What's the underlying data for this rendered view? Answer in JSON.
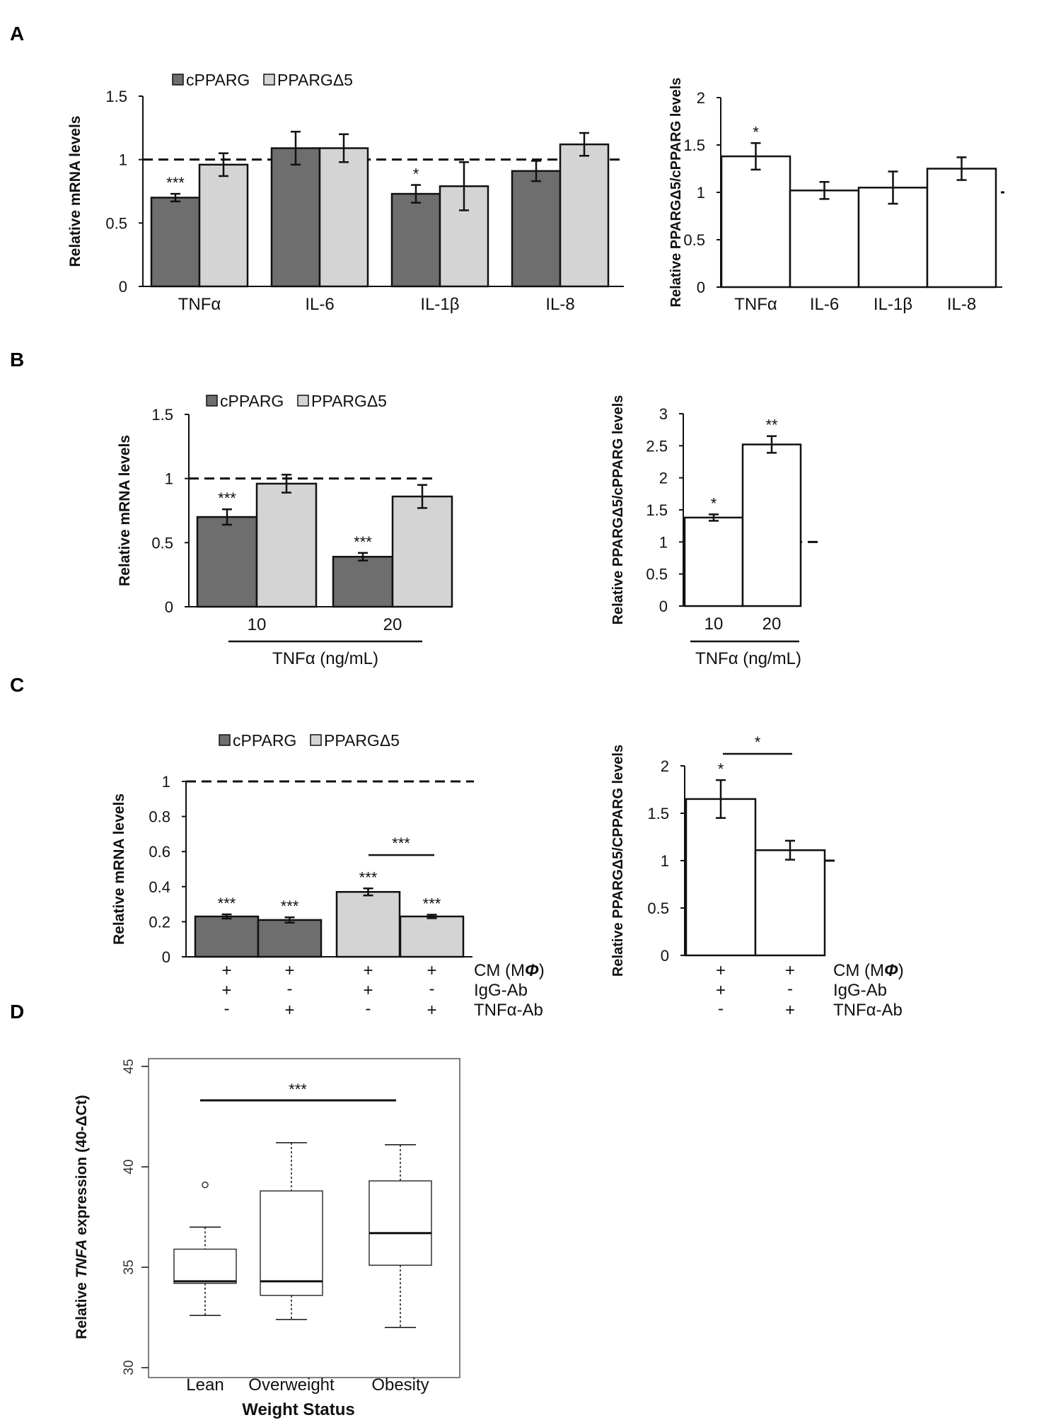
{
  "figure": {
    "panels": {
      "A": "A",
      "B": "B",
      "C": "C",
      "D": "D"
    }
  },
  "colors": {
    "cpparg": "#6e6e6e",
    "delta5": "#d4d4d4",
    "ratio": "#ffffff",
    "stroke": "#111111"
  },
  "chart_data": [
    {
      "id": "A_mrna",
      "type": "bar",
      "panel": "A",
      "ylabel": "Relative mRNA levels",
      "ylim": [
        0,
        1.5
      ],
      "yticks": [
        "0",
        "0.5",
        "1",
        "1.5"
      ],
      "reference_line": 1,
      "categories": [
        "TNFα",
        "IL-6",
        "IL-1β",
        "IL-8"
      ],
      "legend": [
        "cPPARG",
        "PPARGΔ5"
      ],
      "series": [
        {
          "name": "cPPARG",
          "values": [
            0.7,
            1.09,
            0.73,
            0.91
          ],
          "errors": [
            0.03,
            0.13,
            0.07,
            0.08
          ],
          "sig": [
            "***",
            "",
            "*",
            ""
          ]
        },
        {
          "name": "PPARGΔ5",
          "values": [
            0.96,
            1.09,
            0.79,
            1.12
          ],
          "errors": [
            0.09,
            0.11,
            0.19,
            0.09
          ],
          "sig": [
            "",
            "",
            "",
            ""
          ]
        }
      ]
    },
    {
      "id": "A_ratio",
      "type": "bar",
      "panel": "A",
      "ylabel": "Relative PPARGΔ5/cPPARG levels",
      "ylim": [
        0,
        2
      ],
      "yticks": [
        "0",
        "0.5",
        "1",
        "1.5",
        "2"
      ],
      "reference_line": 1,
      "categories": [
        "TNFα",
        "IL-6",
        "IL-1β",
        "IL-8"
      ],
      "series": [
        {
          "name": "ratio",
          "values": [
            1.38,
            1.02,
            1.05,
            1.25
          ],
          "errors": [
            0.14,
            0.09,
            0.17,
            0.12
          ],
          "sig": [
            "*",
            "",
            "",
            ""
          ]
        }
      ]
    },
    {
      "id": "B_mrna",
      "type": "bar",
      "panel": "B",
      "ylabel": "Relative mRNA levels",
      "ylim": [
        0,
        1.5
      ],
      "yticks": [
        "0",
        "0.5",
        "1",
        "1.5"
      ],
      "reference_line": 1,
      "categories": [
        "10",
        "20"
      ],
      "xlabel": "TNFα (ng/mL)",
      "legend": [
        "cPPARG",
        "PPARGΔ5"
      ],
      "series": [
        {
          "name": "cPPARG",
          "values": [
            0.7,
            0.39
          ],
          "errors": [
            0.06,
            0.03
          ],
          "sig": [
            "***",
            "***"
          ]
        },
        {
          "name": "PPARGΔ5",
          "values": [
            0.96,
            0.86
          ],
          "errors": [
            0.07,
            0.09
          ],
          "sig": [
            "",
            ""
          ]
        }
      ]
    },
    {
      "id": "B_ratio",
      "type": "bar",
      "panel": "B",
      "ylabel": "Relative PPARGΔ5/cPPARG levels",
      "ylim": [
        0,
        3
      ],
      "yticks": [
        "0",
        "0.5",
        "1",
        "1.5",
        "2",
        "2.5",
        "3"
      ],
      "reference_line": 1,
      "categories": [
        "10",
        "20"
      ],
      "xlabel": "TNFα (ng/mL)",
      "series": [
        {
          "name": "ratio",
          "values": [
            1.38,
            2.52
          ],
          "errors": [
            0.05,
            0.13
          ],
          "sig": [
            "*",
            "**"
          ]
        }
      ]
    },
    {
      "id": "C_mrna",
      "type": "bar",
      "panel": "C",
      "ylabel": "Relative mRNA levels",
      "ylim": [
        0,
        1
      ],
      "yticks": [
        "0",
        "0.2",
        "0.4",
        "0.6",
        "0.8",
        "1"
      ],
      "reference_line": 1,
      "legend": [
        "cPPARG",
        "PPARGΔ5"
      ],
      "bars": [
        {
          "series": "cPPARG",
          "value": 0.23,
          "error": 0.012,
          "sig": "***"
        },
        {
          "series": "cPPARG",
          "value": 0.21,
          "error": 0.015,
          "sig": "***"
        },
        {
          "series": "PPARGΔ5",
          "value": 0.37,
          "error": 0.02,
          "sig": "***"
        },
        {
          "series": "PPARGΔ5",
          "value": 0.23,
          "error": 0.01,
          "sig": "***"
        }
      ],
      "bracket": {
        "from": 2,
        "to": 3,
        "label": "***",
        "y": 0.58
      },
      "conditions": [
        {
          "label": "CM (MΦ)",
          "marks": [
            "+",
            "+",
            "+",
            "+"
          ]
        },
        {
          "label": "IgG-Ab",
          "marks": [
            "+",
            "-",
            "+",
            "-"
          ]
        },
        {
          "label": "TNFα-Ab",
          "marks": [
            "-",
            "+",
            "-",
            "+"
          ]
        }
      ]
    },
    {
      "id": "C_ratio",
      "type": "bar",
      "panel": "C",
      "ylabel": "Relative PPARGΔ5/CPPARG levels",
      "ylim": [
        0,
        2
      ],
      "yticks": [
        "0",
        "0.5",
        "1",
        "1.5",
        "2"
      ],
      "reference_line": 1,
      "bars": [
        {
          "series": "ratio",
          "value": 1.65,
          "error": 0.2,
          "sig": "*"
        },
        {
          "series": "ratio",
          "value": 1.11,
          "error": 0.1,
          "sig": ""
        }
      ],
      "bracket": {
        "from": 0,
        "to": 1,
        "label": "*",
        "y": 2.0
      },
      "conditions": [
        {
          "label": "CM (MΦ)",
          "marks": [
            "+",
            "+"
          ]
        },
        {
          "label": "IgG-Ab",
          "marks": [
            "+",
            "-"
          ]
        },
        {
          "label": "TNFα-Ab",
          "marks": [
            "-",
            "+"
          ]
        }
      ]
    },
    {
      "id": "D_box",
      "type": "box",
      "panel": "D",
      "ylabel_pre": "Relative ",
      "ylabel_gene": "TNFA",
      "ylabel_post": " expression (40-ΔCt)",
      "xlabel": "Weight Status",
      "ylim": [
        30,
        45
      ],
      "yticks": [
        "30",
        "35",
        "40",
        "45"
      ],
      "categories": [
        "Lean",
        "Overweight",
        "Obesity"
      ],
      "boxes": [
        {
          "min": 32.6,
          "q1": 34.2,
          "median": 34.3,
          "q3": 35.9,
          "max": 37.0,
          "outliers": [
            39.1
          ]
        },
        {
          "min": 32.4,
          "q1": 33.6,
          "median": 34.3,
          "q3": 38.8,
          "max": 41.2,
          "outliers": []
        },
        {
          "min": 32.0,
          "q1": 35.1,
          "median": 36.7,
          "q3": 39.3,
          "max": 41.1,
          "outliers": []
        }
      ],
      "bracket": {
        "from": 0,
        "to": 2,
        "label": "***",
        "y": 43.5
      }
    }
  ]
}
